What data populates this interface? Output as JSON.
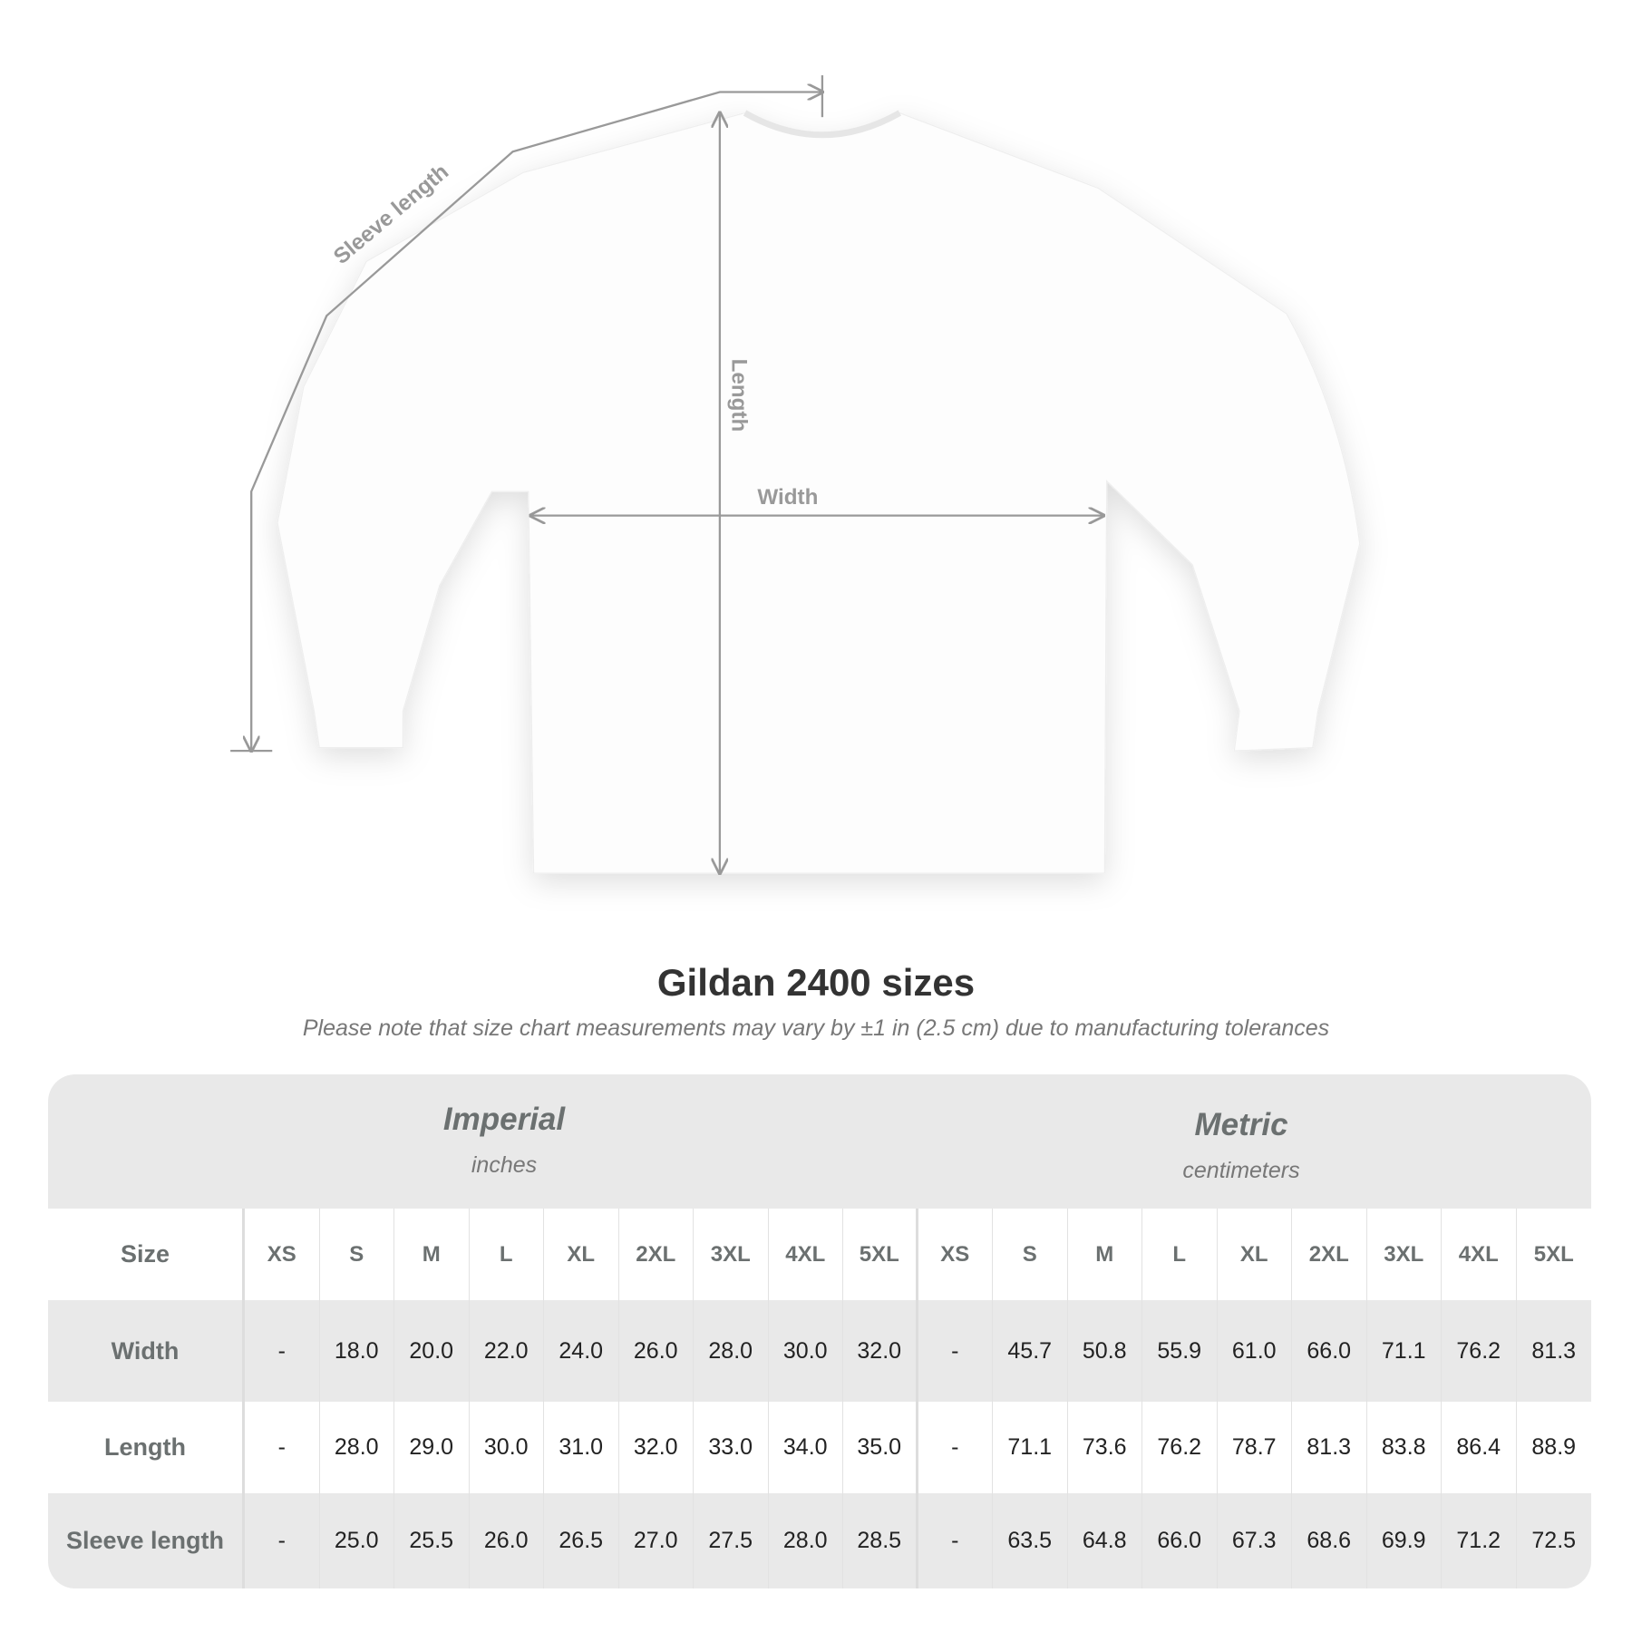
{
  "diagram": {
    "labels": {
      "sleeve": "Sleeve length",
      "length": "Length",
      "width": "Width"
    }
  },
  "title": "Gildan 2400 sizes",
  "note": "Please note that size chart measurements may vary by ±1 in (2.5 cm) due to manufacturing tolerances",
  "table": {
    "imperial": {
      "name": "Imperial",
      "unit": "inches"
    },
    "metric": {
      "name": "Metric",
      "unit": "centimeters"
    },
    "size_label": "Size",
    "sizes": [
      "XS",
      "S",
      "M",
      "L",
      "XL",
      "2XL",
      "3XL",
      "4XL",
      "5XL",
      "XS",
      "S",
      "M",
      "L",
      "XL",
      "2XL",
      "3XL",
      "4XL",
      "5XL"
    ],
    "rows": [
      {
        "label": "Width",
        "values": [
          "-",
          "18.0",
          "20.0",
          "22.0",
          "24.0",
          "26.0",
          "28.0",
          "30.0",
          "32.0",
          "-",
          "45.7",
          "50.8",
          "55.9",
          "61.0",
          "66.0",
          "71.1",
          "76.2",
          "81.3"
        ]
      },
      {
        "label": "Length",
        "values": [
          "-",
          "28.0",
          "29.0",
          "30.0",
          "31.0",
          "32.0",
          "33.0",
          "34.0",
          "35.0",
          "-",
          "71.1",
          "73.6",
          "76.2",
          "78.7",
          "81.3",
          "83.8",
          "86.4",
          "88.9"
        ]
      },
      {
        "label": "Sleeve length",
        "values": [
          "-",
          "25.0",
          "25.5",
          "26.0",
          "26.5",
          "27.0",
          "27.5",
          "28.0",
          "28.5",
          "-",
          "63.5",
          "64.8",
          "66.0",
          "67.3",
          "68.6",
          "69.9",
          "71.2",
          "72.5"
        ]
      }
    ]
  },
  "colors": {
    "table_band": "#e9e9e9",
    "label_text": "#6b7070",
    "measure_line": "#999999"
  }
}
